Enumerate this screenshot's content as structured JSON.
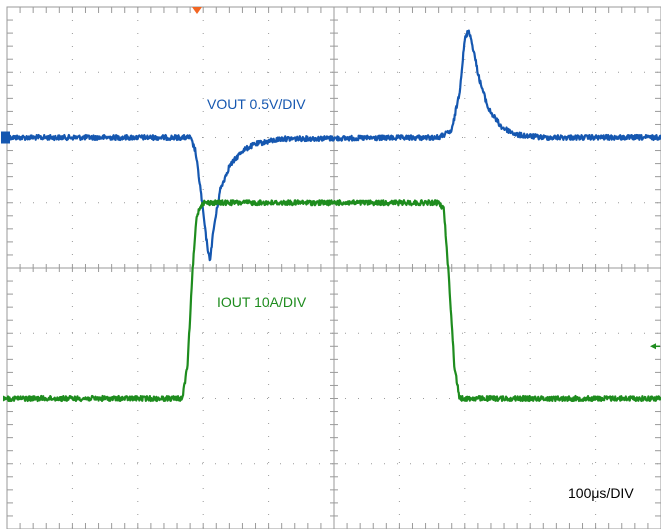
{
  "chart_data": {
    "type": "line",
    "title": "",
    "xlabel": "",
    "ylabel": "",
    "grid": true,
    "divisions": {
      "x": 10,
      "y": 8
    },
    "x_units": "µs",
    "x_range_us": [
      0,
      1000
    ],
    "timebase_label": "100μs/DIV",
    "series": [
      {
        "name": "VOUT 0.5V/DIV",
        "color": "#1557b0",
        "units": "V",
        "scale_per_div": 0.5,
        "baseline_div": 2.0,
        "points": [
          [
            0,
            0
          ],
          [
            280,
            0
          ],
          [
            288,
            -0.1
          ],
          [
            296,
            -0.4
          ],
          [
            304,
            -0.75
          ],
          [
            310,
            -0.95
          ],
          [
            316,
            -0.7
          ],
          [
            326,
            -0.4
          ],
          [
            340,
            -0.22
          ],
          [
            360,
            -0.1
          ],
          [
            380,
            -0.05
          ],
          [
            420,
            -0.01
          ],
          [
            660,
            0
          ],
          [
            680,
            0.05
          ],
          [
            692,
            0.35
          ],
          [
            700,
            0.75
          ],
          [
            706,
            0.83
          ],
          [
            712,
            0.7
          ],
          [
            722,
            0.45
          ],
          [
            736,
            0.22
          ],
          [
            756,
            0.08
          ],
          [
            780,
            0.02
          ],
          [
            820,
            0
          ],
          [
            1000,
            0
          ]
        ]
      },
      {
        "name": "IOUT 10A/DIV",
        "color": "#1e8c1e",
        "units": "A",
        "scale_per_div": 10,
        "baseline_div": 6.0,
        "points": [
          [
            0,
            0
          ],
          [
            268,
            0
          ],
          [
            276,
            5
          ],
          [
            284,
            20
          ],
          [
            290,
            28
          ],
          [
            296,
            29.5
          ],
          [
            300,
            30
          ],
          [
            660,
            30
          ],
          [
            668,
            29
          ],
          [
            676,
            18
          ],
          [
            684,
            5
          ],
          [
            692,
            0
          ],
          [
            1000,
            0
          ]
        ]
      }
    ]
  },
  "colors": {
    "grid": "#9a9a9a",
    "trigger": "#f26522"
  }
}
